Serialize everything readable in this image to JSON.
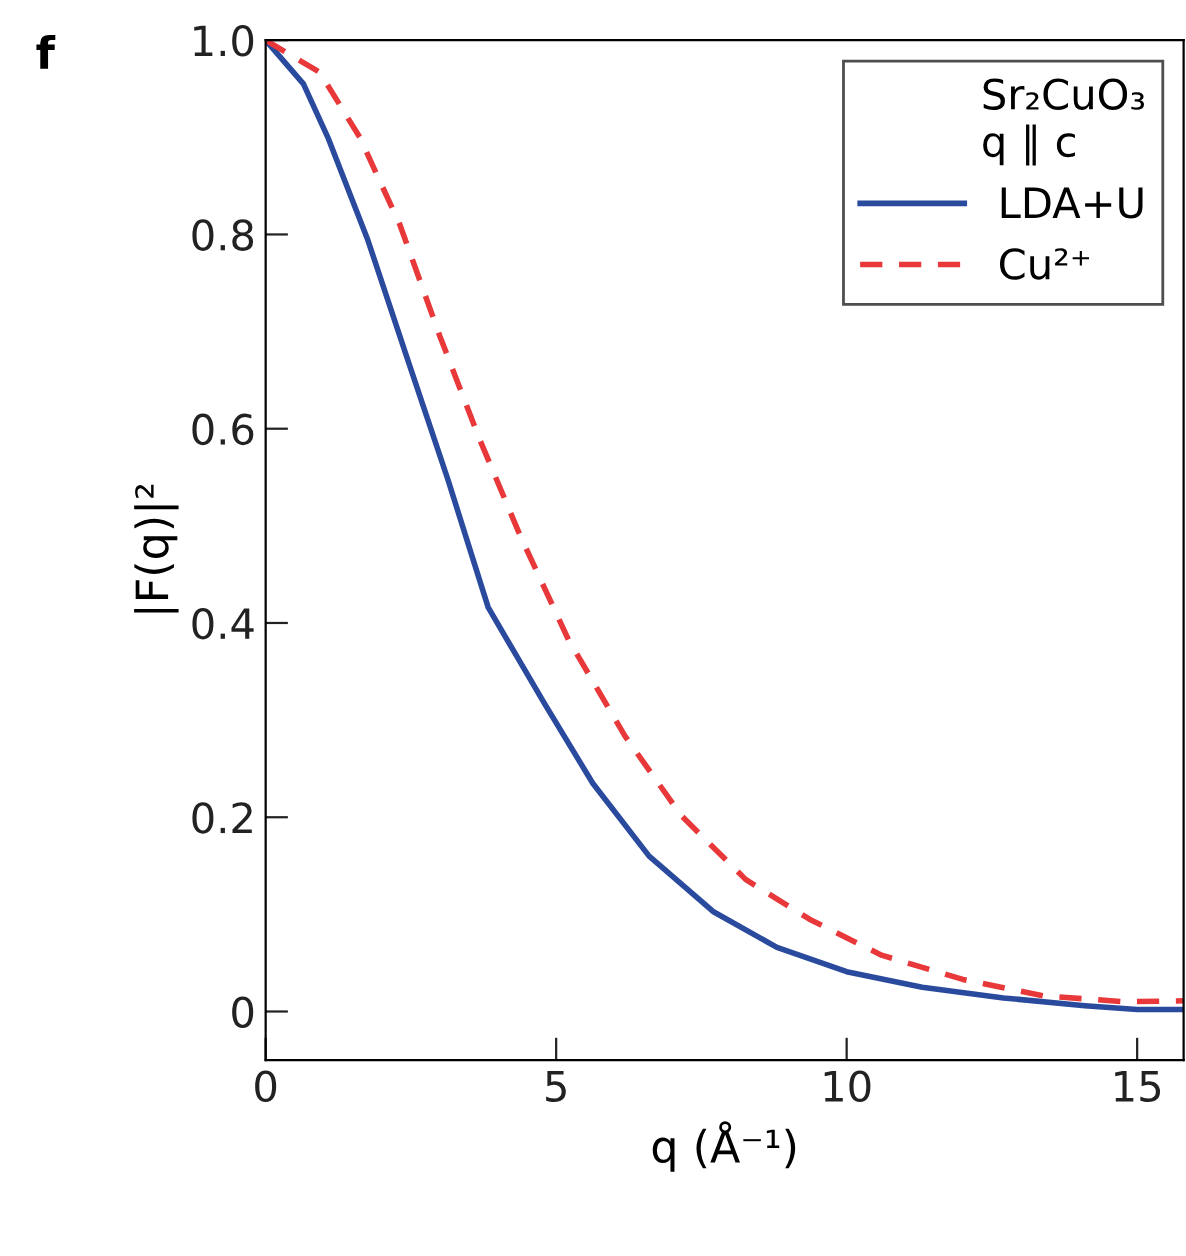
{
  "chart_data": {
    "type": "line",
    "xlabel": "q (Å⁻¹)",
    "ylabel": "|F(q)|²",
    "legend_title": "Sr₂CuO₃\nq ∥ c",
    "annotations": [
      "f"
    ],
    "xlim": [
      0,
      15.8
    ],
    "xticks": [
      0,
      5,
      10,
      15
    ],
    "ylim": [
      -0.05,
      1.0
    ],
    "yticks": [
      0,
      0.2,
      0.4,
      0.6,
      0.8,
      {
        "value": 1.0,
        "label": "1.0"
      }
    ],
    "grid": false,
    "legend": "top right",
    "marker": "none",
    "series": [
      {
        "name": "LDA+U",
        "color": "#2a4a9e",
        "line_style": "solid",
        "x": [
          0,
          0.65,
          1.07,
          1.76,
          2.45,
          3.14,
          3.83,
          4.8,
          5.63,
          6.6,
          7.7,
          8.8,
          10,
          11.3,
          12.7,
          14.1,
          15,
          15.8
        ],
        "values": [
          1.0,
          0.955,
          0.9,
          0.794,
          0.67,
          0.547,
          0.416,
          0.317,
          0.235,
          0.16,
          0.103,
          0.066,
          0.041,
          0.025,
          0.014,
          0.006,
          0.002,
          0.002
        ]
      },
      {
        "name": "Cu²⁺",
        "color": "#e8383a",
        "line_style": "dashed",
        "x": [
          0,
          0.93,
          1.62,
          2.31,
          3.0,
          3.69,
          4.38,
          5.21,
          6.18,
          7.15,
          8.26,
          9.36,
          10.6,
          12.0,
          13.4,
          14.8,
          15.8
        ],
        "values": [
          1.0,
          0.967,
          0.9,
          0.81,
          0.695,
          0.588,
          0.49,
          0.383,
          0.284,
          0.202,
          0.136,
          0.095,
          0.058,
          0.033,
          0.016,
          0.01,
          0.011
        ]
      }
    ]
  }
}
